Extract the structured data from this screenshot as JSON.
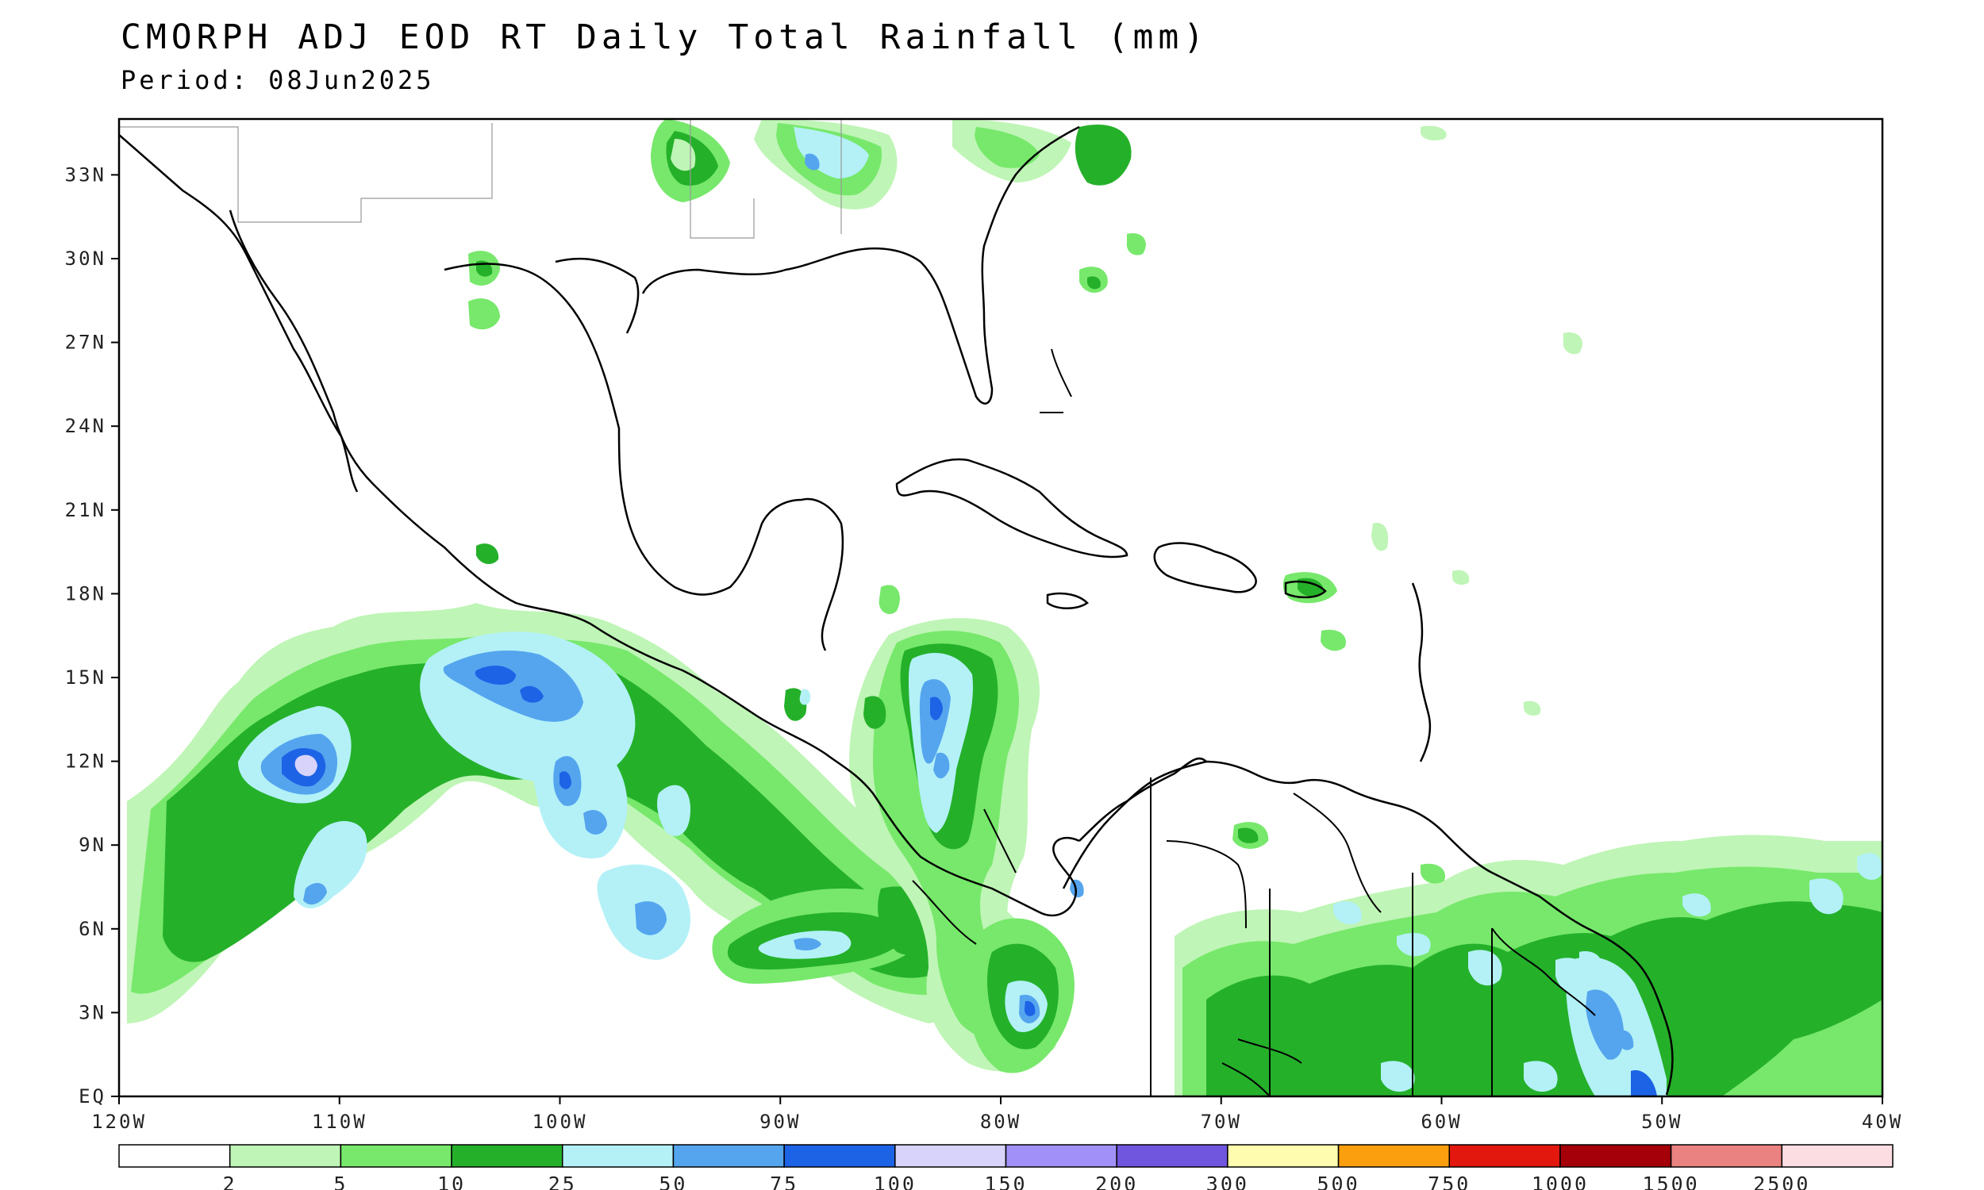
{
  "header": {
    "title": "CMORPH ADJ EOD RT Daily Total Rainfall (mm)",
    "period": "Period: 08Jun2025"
  },
  "map": {
    "lon_range": [
      -120,
      -40
    ],
    "lat_range": [
      0,
      35
    ],
    "lat_ticks": [
      {
        "lat": 33,
        "label": "33N"
      },
      {
        "lat": 30,
        "label": "30N"
      },
      {
        "lat": 27,
        "label": "27N"
      },
      {
        "lat": 24,
        "label": "24N"
      },
      {
        "lat": 21,
        "label": "21N"
      },
      {
        "lat": 18,
        "label": "18N"
      },
      {
        "lat": 15,
        "label": "15N"
      },
      {
        "lat": 12,
        "label": "12N"
      },
      {
        "lat": 9,
        "label": "9N"
      },
      {
        "lat": 6,
        "label": "6N"
      },
      {
        "lat": 3,
        "label": "3N"
      },
      {
        "lat": 0,
        "label": "EQ"
      }
    ],
    "lon_ticks": [
      {
        "lon": -120,
        "label": "120W"
      },
      {
        "lon": -110,
        "label": "110W"
      },
      {
        "lon": -100,
        "label": "100W"
      },
      {
        "lon": -90,
        "label": "90W"
      },
      {
        "lon": -80,
        "label": "80W"
      },
      {
        "lon": -70,
        "label": "70W"
      },
      {
        "lon": -60,
        "label": "60W"
      },
      {
        "lon": -50,
        "label": "50W"
      },
      {
        "lon": -40,
        "label": "40W"
      }
    ]
  },
  "legend": {
    "colors": [
      "#ffffff",
      "#bff5b6",
      "#77e86b",
      "#25b02a",
      "#b3f1f7",
      "#55a5ee",
      "#1d63e6",
      "#d7d3fb",
      "#a190f7",
      "#7055de",
      "#fefcae",
      "#fb9f0e",
      "#e2170d",
      "#a50009",
      "#e98280",
      "#fbdde2"
    ],
    "labels": [
      "2",
      "5",
      "10",
      "25",
      "50",
      "75",
      "100",
      "150",
      "200",
      "300",
      "500",
      "750",
      "1000",
      "1500",
      "2500"
    ]
  },
  "precip_colors": {
    "c2": "#bff5b6",
    "c5": "#77e86b",
    "c10": "#25b02a",
    "c25": "#b3f1f7",
    "c50": "#55a5ee",
    "c75": "#1d63e6",
    "c100": "#d7d3fb"
  }
}
